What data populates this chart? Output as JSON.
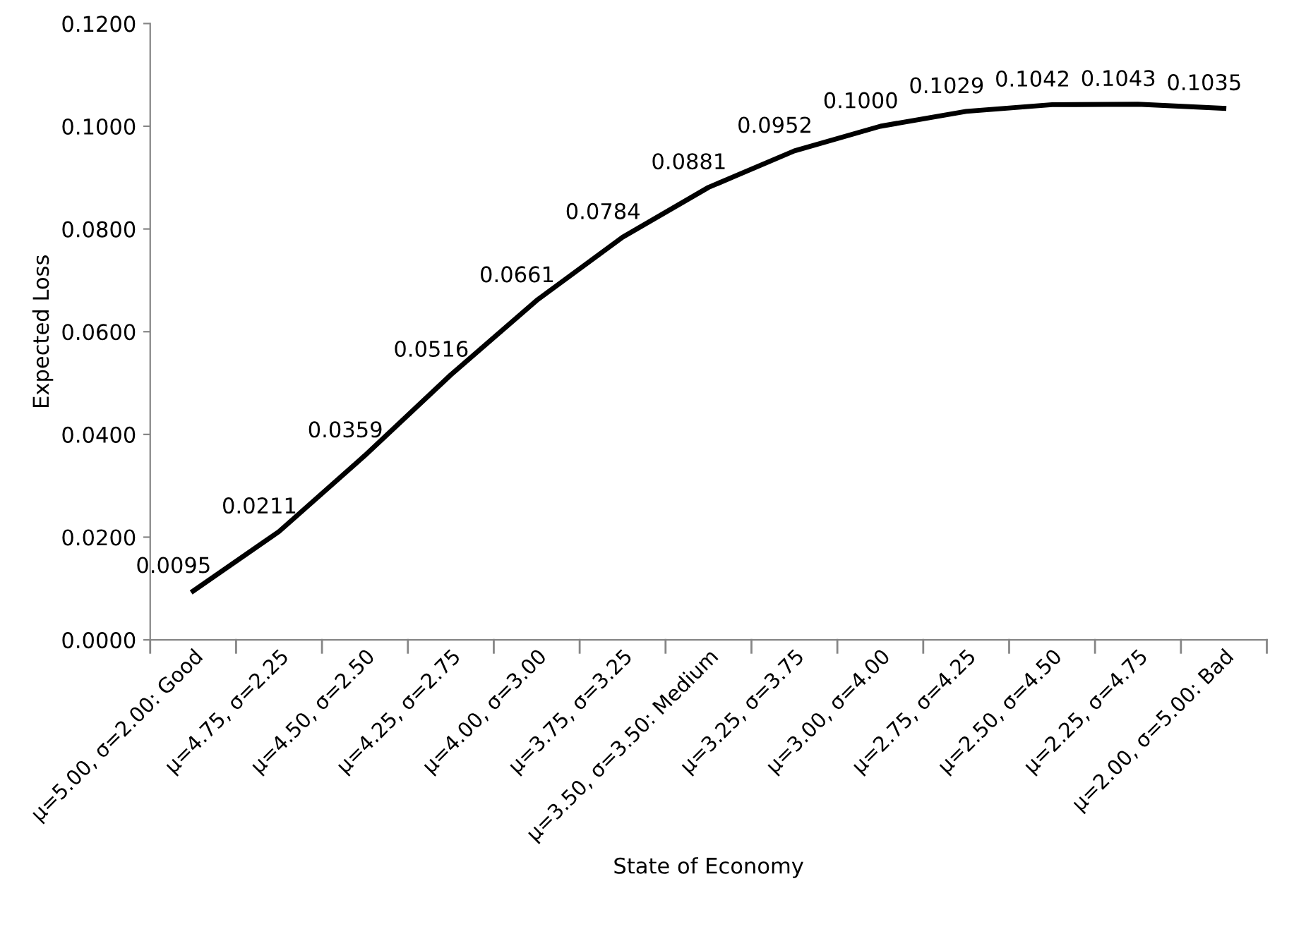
{
  "chart_data": {
    "type": "line",
    "xlabel": "State of Economy",
    "ylabel": "Expected Loss",
    "categories": [
      "μ=5.00, σ=2.00: Good",
      "μ=4.75, σ=2.25",
      "μ=4.50, σ=2.50",
      "μ=4.25, σ=2.75",
      "μ=4.00, σ=3.00",
      "μ=3.75, σ=3.25",
      "μ=3.50, σ=3.50: Medium",
      "μ=3.25, σ=3.75",
      "μ=3.00, σ=4.00",
      "μ=2.75, σ=4.25",
      "μ=2.50, σ=4.50",
      "μ=2.25, σ=4.75",
      "μ=2.00, σ=5.00: Bad"
    ],
    "series": [
      {
        "color": "#000000",
        "values": [
          0.0095,
          0.0211,
          0.0359,
          0.0516,
          0.0661,
          0.0784,
          0.0881,
          0.0952,
          0.1,
          0.1029,
          0.1042,
          0.1043,
          0.1035
        ],
        "value_labels": [
          "0.0095",
          "0.0211",
          "0.0359",
          "0.0516",
          "0.0661",
          "0.0784",
          "0.0881",
          "0.0952",
          "0.1000",
          "0.1029",
          "0.1042",
          "0.1043",
          "0.1035"
        ]
      }
    ],
    "ylim": [
      0,
      0.12
    ],
    "yticks": [
      {
        "value": 0,
        "label": "0.0000"
      },
      {
        "value": 0.02,
        "label": "0.0200"
      },
      {
        "value": 0.04,
        "label": "0.0400"
      },
      {
        "value": 0.06,
        "label": "0.0600"
      },
      {
        "value": 0.08,
        "label": "0.0800"
      },
      {
        "value": 0.1,
        "label": "0.1000"
      },
      {
        "value": 0.12,
        "label": "0.1200"
      }
    ],
    "grid": false,
    "legend": false,
    "marker": "none",
    "line_style": "solid"
  }
}
